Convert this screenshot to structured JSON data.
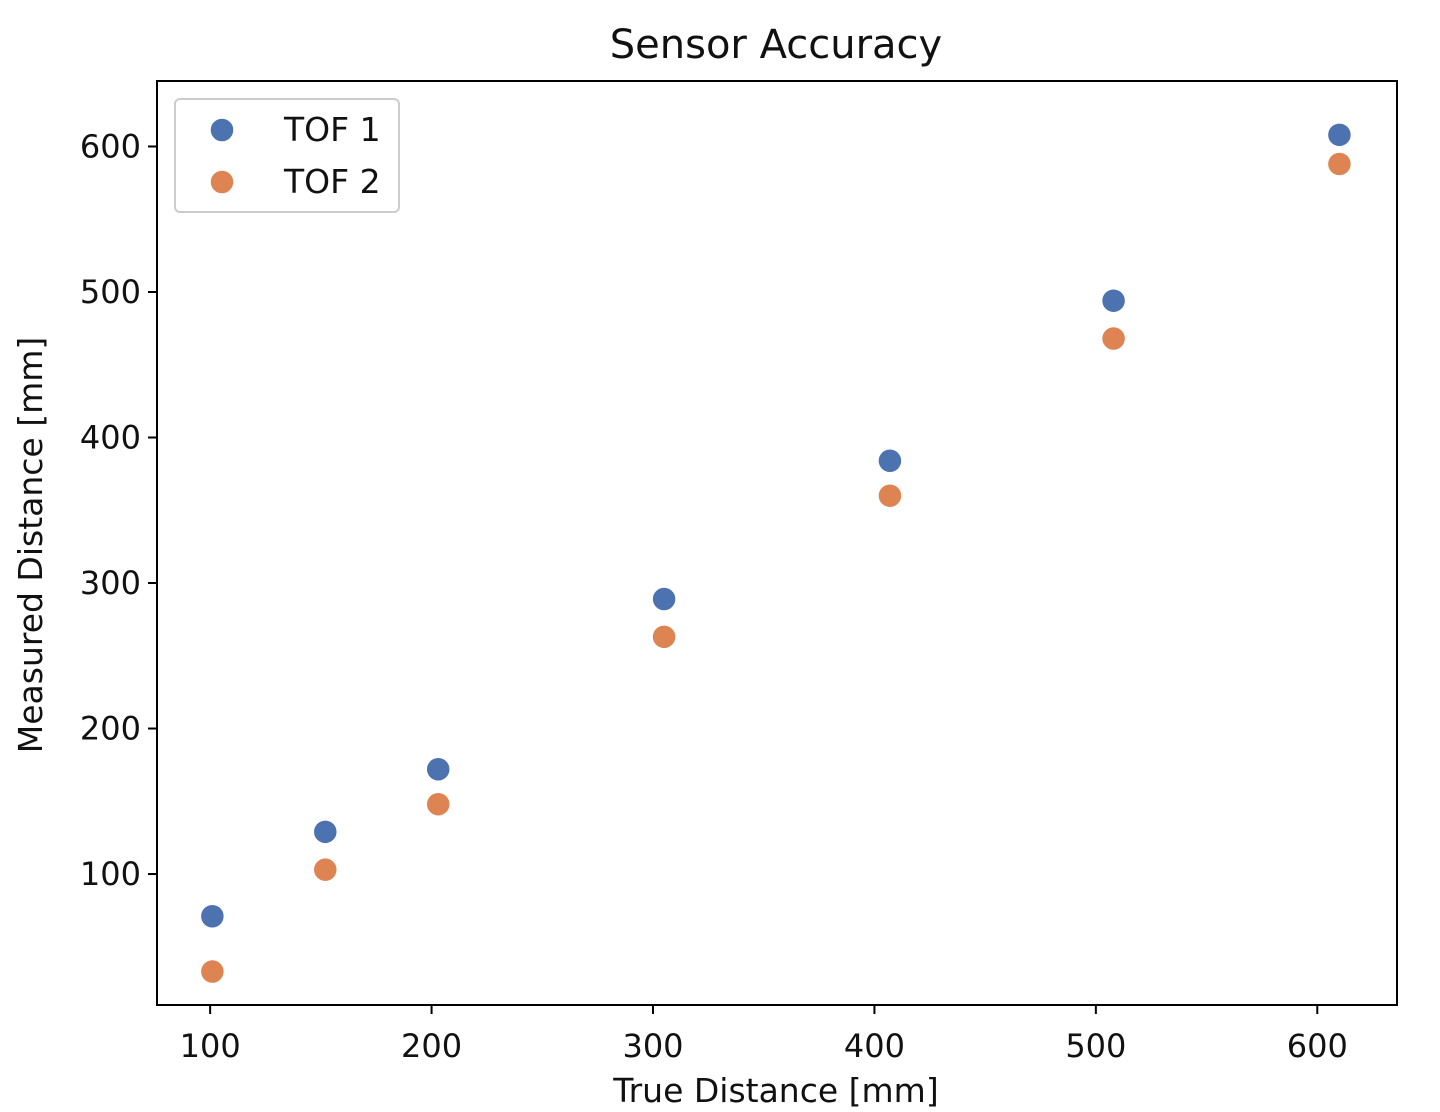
{
  "chart_data": {
    "type": "scatter",
    "title": "Sensor Accuracy",
    "xlabel": "True Distance [mm]",
    "ylabel": "Measured Distance [mm]",
    "xlim": [
      76,
      636
    ],
    "ylim": [
      10,
      645
    ],
    "xticks": [
      100,
      200,
      300,
      400,
      500,
      600
    ],
    "yticks": [
      100,
      200,
      300,
      400,
      500,
      600
    ],
    "grid": false,
    "legend_position": "upper-left",
    "series": [
      {
        "name": "TOF 1",
        "color": "#4c72b0",
        "points": [
          {
            "x": 101,
            "y": 71
          },
          {
            "x": 152,
            "y": 129
          },
          {
            "x": 203,
            "y": 172
          },
          {
            "x": 305,
            "y": 289
          },
          {
            "x": 407,
            "y": 384
          },
          {
            "x": 508,
            "y": 494
          },
          {
            "x": 610,
            "y": 608
          }
        ]
      },
      {
        "name": "TOF 2",
        "color": "#dd8452",
        "points": [
          {
            "x": 101,
            "y": 33
          },
          {
            "x": 152,
            "y": 103
          },
          {
            "x": 203,
            "y": 148
          },
          {
            "x": 305,
            "y": 263
          },
          {
            "x": 407,
            "y": 360
          },
          {
            "x": 508,
            "y": 468
          },
          {
            "x": 610,
            "y": 588
          }
        ]
      }
    ]
  }
}
